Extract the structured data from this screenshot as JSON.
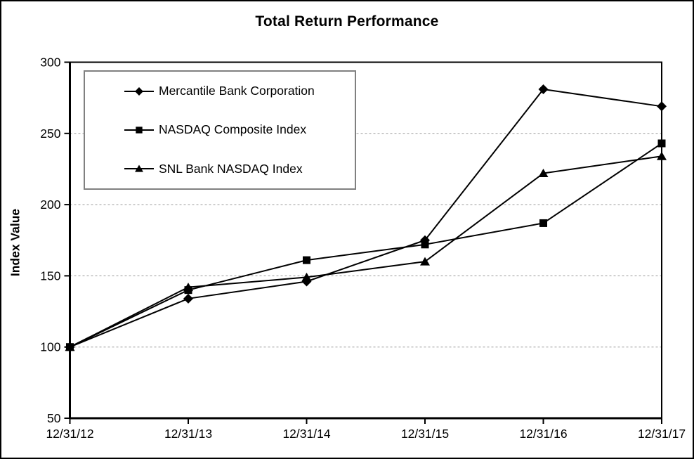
{
  "chart_data": {
    "type": "line",
    "title": "Total Return Performance",
    "xlabel": "",
    "ylabel": "Index Value",
    "categories": [
      "12/31/12",
      "12/31/13",
      "12/31/14",
      "12/31/15",
      "12/31/16",
      "12/31/17"
    ],
    "series": [
      {
        "name": "Mercantile Bank Corporation",
        "marker": "diamond",
        "values": [
          100,
          134,
          146,
          175,
          281,
          269
        ]
      },
      {
        "name": "NASDAQ Composite Index",
        "marker": "square",
        "values": [
          100,
          140,
          161,
          172,
          187,
          243
        ]
      },
      {
        "name": "SNL Bank NASDAQ Index",
        "marker": "triangle",
        "values": [
          100,
          142,
          149,
          160,
          222,
          234
        ]
      }
    ],
    "ylim": [
      50,
      300
    ],
    "yticks": [
      50,
      100,
      150,
      200,
      250,
      300
    ],
    "grid": "horizontal-dashed",
    "legend_position": "top-left-inside",
    "colors": {
      "series": "#000000",
      "frame": "#000000",
      "grid": "#9a9a9a",
      "legend_border": "#808080",
      "background": "#ffffff"
    }
  }
}
